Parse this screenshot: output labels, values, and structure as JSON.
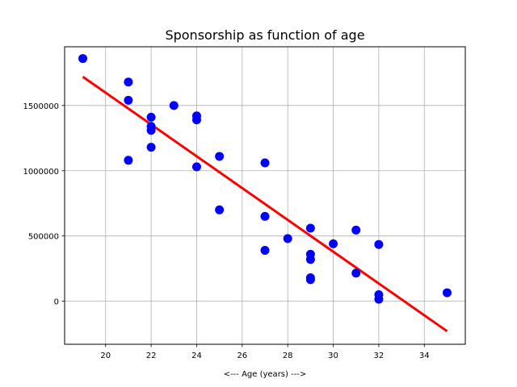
{
  "chart_data": {
    "type": "scatter",
    "title": "Sponsorship as function of age",
    "xlabel": "<--- Age (years) --->",
    "ylabel": "",
    "xlim": [
      18.2,
      35.8
    ],
    "ylim": [
      -330000,
      1950000
    ],
    "x_ticks": [
      20,
      22,
      24,
      26,
      28,
      30,
      32,
      34
    ],
    "y_ticks": [
      0,
      500000,
      1000000,
      1500000
    ],
    "grid": true,
    "points_color": "#0000ff",
    "fit_color": "#ff0000",
    "points": [
      {
        "x": 19,
        "y": 1860000
      },
      {
        "x": 21,
        "y": 1680000
      },
      {
        "x": 21,
        "y": 1540000
      },
      {
        "x": 21,
        "y": 1080000
      },
      {
        "x": 22,
        "y": 1410000
      },
      {
        "x": 22,
        "y": 1340000
      },
      {
        "x": 22,
        "y": 1310000
      },
      {
        "x": 22,
        "y": 1180000
      },
      {
        "x": 23,
        "y": 1500000
      },
      {
        "x": 24,
        "y": 1420000
      },
      {
        "x": 24,
        "y": 1390000
      },
      {
        "x": 24,
        "y": 1030000
      },
      {
        "x": 25,
        "y": 1110000
      },
      {
        "x": 25,
        "y": 700000
      },
      {
        "x": 27,
        "y": 1060000
      },
      {
        "x": 27,
        "y": 650000
      },
      {
        "x": 27,
        "y": 390000
      },
      {
        "x": 28,
        "y": 480000
      },
      {
        "x": 29,
        "y": 560000
      },
      {
        "x": 29,
        "y": 360000
      },
      {
        "x": 29,
        "y": 320000
      },
      {
        "x": 29,
        "y": 180000
      },
      {
        "x": 29,
        "y": 165000
      },
      {
        "x": 30,
        "y": 440000
      },
      {
        "x": 31,
        "y": 545000
      },
      {
        "x": 31,
        "y": 215000
      },
      {
        "x": 32,
        "y": 435000
      },
      {
        "x": 32,
        "y": 50000
      },
      {
        "x": 32,
        "y": 15000
      },
      {
        "x": 35,
        "y": 65000
      }
    ],
    "fit_line": {
      "x": [
        19,
        35
      ],
      "y": [
        1720000,
        -230000
      ]
    }
  }
}
